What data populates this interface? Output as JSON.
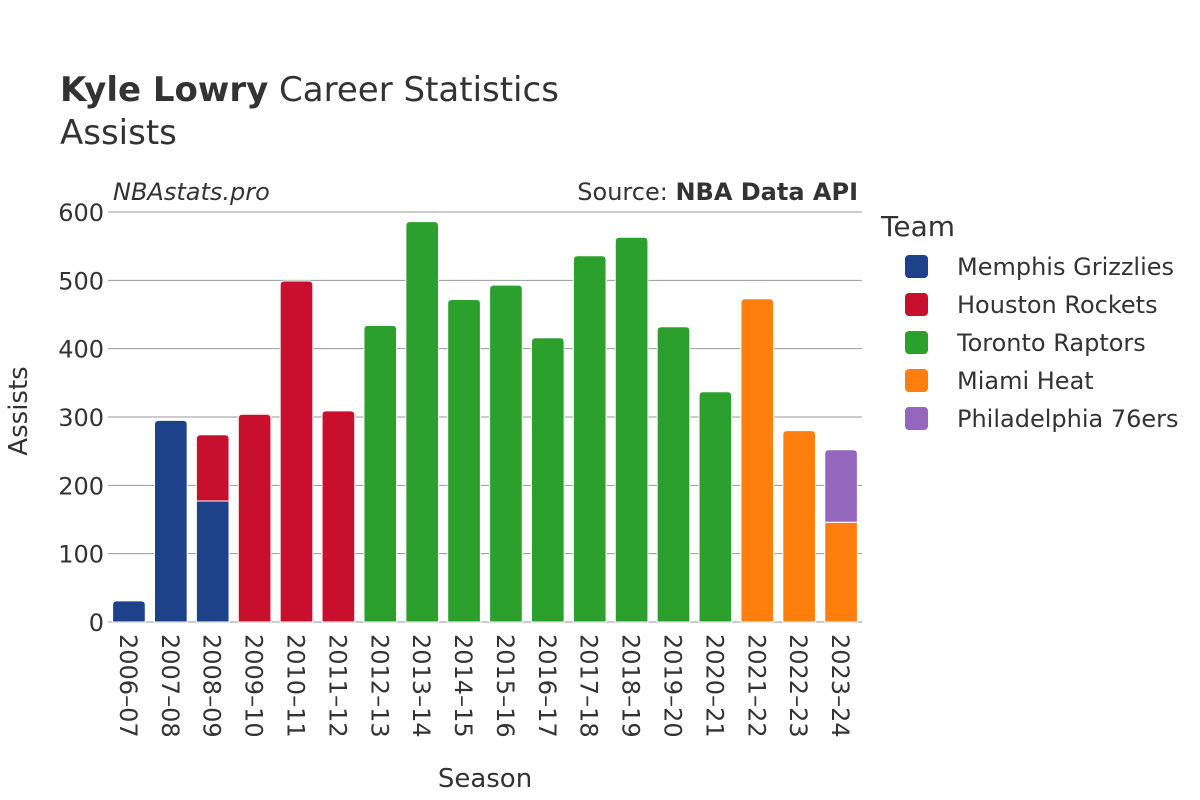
{
  "header": {
    "player": "Kyle Lowry",
    "title_rest": " Career Statistics",
    "subtitle": "Assists",
    "brand": "NBAstats.pro",
    "source_prefix": "Source: ",
    "source_name": "NBA Data API"
  },
  "legend": {
    "title": "Team"
  },
  "chart_data": {
    "type": "bar",
    "stacked": true,
    "title": "Kyle Lowry Career Statistics",
    "subtitle": "Assists",
    "xlabel": "Season",
    "ylabel": "Assists",
    "ylim": [
      0,
      600
    ],
    "yticks": [
      0,
      100,
      200,
      300,
      400,
      500,
      600
    ],
    "grid": true,
    "legend_position": "right",
    "categories": [
      "2006–07",
      "2007–08",
      "2008–09",
      "2009–10",
      "2010–11",
      "2011–12",
      "2012–13",
      "2013–14",
      "2014–15",
      "2015–16",
      "2016–17",
      "2017–18",
      "2018–19",
      "2019–20",
      "2020–21",
      "2021–22",
      "2022–23",
      "2023–24"
    ],
    "series": [
      {
        "name": "Memphis Grizzlies",
        "color": "#1d428a",
        "values": [
          31,
          295,
          177,
          0,
          0,
          0,
          0,
          0,
          0,
          0,
          0,
          0,
          0,
          0,
          0,
          0,
          0,
          0
        ]
      },
      {
        "name": "Houston Rockets",
        "color": "#c8102e",
        "values": [
          0,
          0,
          97,
          304,
          499,
          309,
          0,
          0,
          0,
          0,
          0,
          0,
          0,
          0,
          0,
          0,
          0,
          0
        ]
      },
      {
        "name": "Toronto Raptors",
        "color": "#2ca02c",
        "values": [
          0,
          0,
          0,
          0,
          0,
          0,
          434,
          586,
          472,
          493,
          416,
          536,
          563,
          432,
          337,
          0,
          0,
          0
        ]
      },
      {
        "name": "Miami Heat",
        "color": "#ff7f0e",
        "values": [
          0,
          0,
          0,
          0,
          0,
          0,
          0,
          0,
          0,
          0,
          0,
          0,
          0,
          0,
          0,
          473,
          280,
          146
        ]
      },
      {
        "name": "Philadelphia 76ers",
        "color": "#9467bd",
        "values": [
          0,
          0,
          0,
          0,
          0,
          0,
          0,
          0,
          0,
          0,
          0,
          0,
          0,
          0,
          0,
          0,
          0,
          106
        ]
      }
    ]
  }
}
